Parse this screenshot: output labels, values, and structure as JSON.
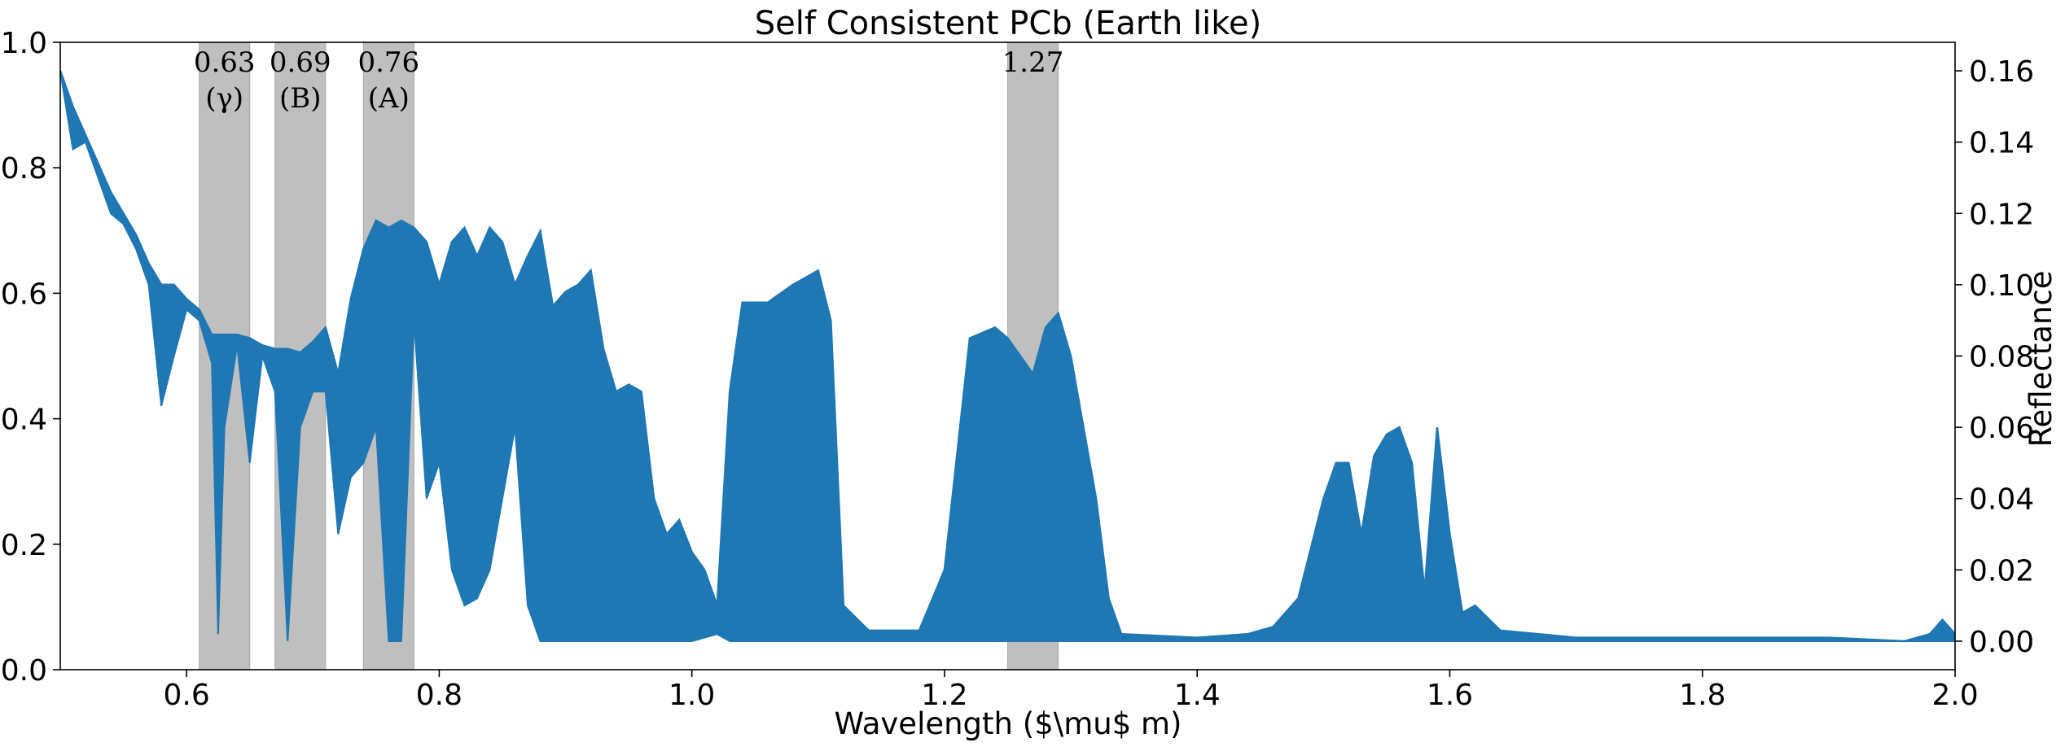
{
  "chart_data": {
    "type": "line",
    "title": "Self Consistent PCb (Earth like)",
    "xlabel": "Wavelength ($\\mu$ m)",
    "ylabel_left": "",
    "ylabel_right": "Reflectance",
    "xlim": [
      0.5,
      2.0
    ],
    "ylim_left": [
      0.0,
      1.0
    ],
    "ylim_right": [
      -0.008,
      0.168
    ],
    "x_ticks": [
      "0.6",
      "0.8",
      "1.0",
      "1.2",
      "1.4",
      "1.6",
      "1.8",
      "2.0"
    ],
    "y_left_ticks": [
      "0.0",
      "0.2",
      "0.4",
      "0.6",
      "0.8",
      "1.0"
    ],
    "y_right_ticks": [
      "0.00",
      "0.02",
      "0.04",
      "0.06",
      "0.08",
      "0.10",
      "0.12",
      "0.14",
      "0.16"
    ],
    "grid": false,
    "line_color": "#1f77b4",
    "band_color": "#bfbfbf",
    "bands": [
      {
        "range": [
          0.61,
          0.65
        ],
        "label": "0.63",
        "sublabel": "(γ)"
      },
      {
        "range": [
          0.67,
          0.71
        ],
        "label": "0.69",
        "sublabel": "(B)"
      },
      {
        "range": [
          0.74,
          0.78
        ],
        "label": "0.76",
        "sublabel": "(A)"
      },
      {
        "range": [
          1.25,
          1.29
        ],
        "label": "1.27",
        "sublabel": ""
      }
    ],
    "series": [
      {
        "axis": "right",
        "upper_envelope": [
          [
            0.5,
            0.16
          ],
          [
            0.51,
            0.15
          ],
          [
            0.52,
            0.142
          ],
          [
            0.53,
            0.134
          ],
          [
            0.54,
            0.126
          ],
          [
            0.55,
            0.12
          ],
          [
            0.56,
            0.114
          ],
          [
            0.57,
            0.106
          ],
          [
            0.58,
            0.1
          ],
          [
            0.59,
            0.1
          ],
          [
            0.6,
            0.096
          ],
          [
            0.61,
            0.093
          ],
          [
            0.62,
            0.086
          ],
          [
            0.63,
            0.086
          ],
          [
            0.64,
            0.086
          ],
          [
            0.65,
            0.085
          ],
          [
            0.66,
            0.083
          ],
          [
            0.67,
            0.082
          ],
          [
            0.68,
            0.082
          ],
          [
            0.69,
            0.081
          ],
          [
            0.7,
            0.084
          ],
          [
            0.71,
            0.088
          ],
          [
            0.72,
            0.075
          ],
          [
            0.73,
            0.096
          ],
          [
            0.74,
            0.11
          ],
          [
            0.75,
            0.118
          ],
          [
            0.76,
            0.116
          ],
          [
            0.77,
            0.118
          ],
          [
            0.78,
            0.116
          ],
          [
            0.79,
            0.112
          ],
          [
            0.8,
            0.1
          ],
          [
            0.81,
            0.112
          ],
          [
            0.82,
            0.116
          ],
          [
            0.83,
            0.108
          ],
          [
            0.84,
            0.116
          ],
          [
            0.85,
            0.112
          ],
          [
            0.86,
            0.1
          ],
          [
            0.87,
            0.108
          ],
          [
            0.88,
            0.115
          ],
          [
            0.89,
            0.094
          ],
          [
            0.9,
            0.098
          ],
          [
            0.91,
            0.1
          ],
          [
            0.92,
            0.104
          ],
          [
            0.93,
            0.082
          ],
          [
            0.94,
            0.07
          ],
          [
            0.95,
            0.072
          ],
          [
            0.96,
            0.07
          ],
          [
            0.97,
            0.04
          ],
          [
            0.98,
            0.03
          ],
          [
            0.99,
            0.034
          ],
          [
            1.0,
            0.025
          ],
          [
            1.01,
            0.02
          ],
          [
            1.02,
            0.01
          ],
          [
            1.03,
            0.07
          ],
          [
            1.04,
            0.095
          ],
          [
            1.06,
            0.095
          ],
          [
            1.08,
            0.1
          ],
          [
            1.1,
            0.104
          ],
          [
            1.11,
            0.09
          ],
          [
            1.12,
            0.01
          ],
          [
            1.14,
            0.003
          ],
          [
            1.16,
            0.003
          ],
          [
            1.18,
            0.003
          ],
          [
            1.2,
            0.02
          ],
          [
            1.22,
            0.085
          ],
          [
            1.24,
            0.088
          ],
          [
            1.25,
            0.085
          ],
          [
            1.26,
            0.08
          ],
          [
            1.27,
            0.075
          ],
          [
            1.28,
            0.088
          ],
          [
            1.29,
            0.092
          ],
          [
            1.3,
            0.08
          ],
          [
            1.32,
            0.04
          ],
          [
            1.33,
            0.012
          ],
          [
            1.34,
            0.002
          ],
          [
            1.4,
            0.001
          ],
          [
            1.44,
            0.002
          ],
          [
            1.46,
            0.004
          ],
          [
            1.48,
            0.012
          ],
          [
            1.5,
            0.04
          ],
          [
            1.51,
            0.05
          ],
          [
            1.52,
            0.05
          ],
          [
            1.53,
            0.03
          ],
          [
            1.54,
            0.052
          ],
          [
            1.55,
            0.058
          ],
          [
            1.56,
            0.06
          ],
          [
            1.57,
            0.05
          ],
          [
            1.58,
            0.014
          ],
          [
            1.59,
            0.06
          ],
          [
            1.6,
            0.03
          ],
          [
            1.61,
            0.008
          ],
          [
            1.62,
            0.01
          ],
          [
            1.64,
            0.003
          ],
          [
            1.7,
            0.001
          ],
          [
            1.8,
            0.001
          ],
          [
            1.9,
            0.001
          ],
          [
            1.96,
            0.0
          ],
          [
            1.98,
            0.002
          ],
          [
            1.99,
            0.006
          ],
          [
            2.0,
            0.002
          ]
        ],
        "lower_envelope": [
          [
            0.5,
            0.16
          ],
          [
            0.51,
            0.138
          ],
          [
            0.52,
            0.14
          ],
          [
            0.53,
            0.13
          ],
          [
            0.54,
            0.12
          ],
          [
            0.55,
            0.117
          ],
          [
            0.56,
            0.11
          ],
          [
            0.57,
            0.1
          ],
          [
            0.58,
            0.066
          ],
          [
            0.59,
            0.08
          ],
          [
            0.6,
            0.093
          ],
          [
            0.61,
            0.09
          ],
          [
            0.62,
            0.078
          ],
          [
            0.625,
            0.002
          ],
          [
            0.63,
            0.06
          ],
          [
            0.64,
            0.083
          ],
          [
            0.65,
            0.05
          ],
          [
            0.66,
            0.08
          ],
          [
            0.67,
            0.07
          ],
          [
            0.68,
            0.0
          ],
          [
            0.69,
            0.06
          ],
          [
            0.7,
            0.07
          ],
          [
            0.71,
            0.07
          ],
          [
            0.72,
            0.03
          ],
          [
            0.73,
            0.046
          ],
          [
            0.74,
            0.05
          ],
          [
            0.75,
            0.06
          ],
          [
            0.76,
            0.0
          ],
          [
            0.77,
            0.0
          ],
          [
            0.78,
            0.09
          ],
          [
            0.79,
            0.04
          ],
          [
            0.8,
            0.05
          ],
          [
            0.81,
            0.02
          ],
          [
            0.82,
            0.01
          ],
          [
            0.83,
            0.012
          ],
          [
            0.84,
            0.02
          ],
          [
            0.85,
            0.04
          ],
          [
            0.86,
            0.06
          ],
          [
            0.87,
            0.01
          ],
          [
            0.88,
            0.0
          ],
          [
            0.9,
            0.0
          ],
          [
            0.95,
            0.0
          ],
          [
            1.0,
            0.0
          ],
          [
            1.02,
            0.002
          ],
          [
            1.03,
            0.0
          ],
          [
            1.1,
            0.0
          ],
          [
            1.2,
            0.0
          ],
          [
            1.3,
            0.0
          ],
          [
            1.4,
            0.0
          ],
          [
            1.5,
            0.0
          ],
          [
            1.6,
            0.0
          ],
          [
            1.7,
            0.0
          ],
          [
            1.8,
            0.0
          ],
          [
            1.9,
            0.0
          ],
          [
            2.0,
            0.0
          ]
        ]
      }
    ]
  }
}
